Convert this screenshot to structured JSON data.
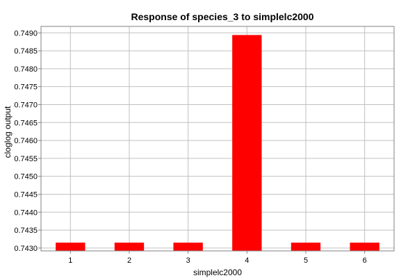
{
  "chart_data": {
    "type": "bar",
    "title": "Response of species_3 to simplelc2000",
    "xlabel": "simplelc2000",
    "ylabel": "cloglog output",
    "categories": [
      "1",
      "2",
      "3",
      "4",
      "5",
      "6"
    ],
    "values": [
      0.74315,
      0.74315,
      0.74315,
      0.74894,
      0.74315,
      0.74315
    ],
    "ylim": [
      0.74292,
      0.74918
    ],
    "yticks": [
      "0.7430",
      "0.7435",
      "0.7440",
      "0.7445",
      "0.7450",
      "0.7455",
      "0.7460",
      "0.7465",
      "0.7470",
      "0.7475",
      "0.7480",
      "0.7485",
      "0.7490"
    ],
    "grid": true,
    "legend": "none",
    "colors": {
      "bar": "#ff0000",
      "grid": "#c0c0c0",
      "axis": "#808080",
      "background": "#ffffff"
    }
  }
}
